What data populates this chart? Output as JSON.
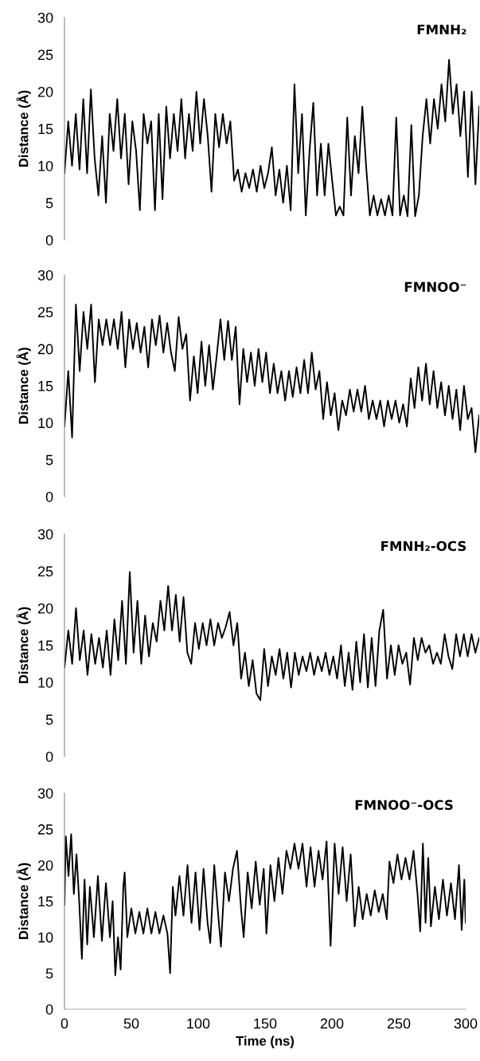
{
  "chart_data": [
    {
      "type": "line",
      "title": "FMNH₂",
      "ylabel": "Distance (Å)",
      "ylim": [
        0,
        30
      ],
      "yticks": [
        0,
        5,
        10,
        15,
        20,
        25,
        30
      ],
      "tick_labels": "y",
      "line_style": "solid",
      "categories": [
        null,
        null,
        null,
        null,
        null,
        null,
        null,
        null,
        null,
        null,
        null,
        null,
        null,
        null,
        null,
        null,
        null,
        null,
        null,
        null,
        null,
        null,
        null,
        null,
        null,
        null,
        null,
        null,
        null,
        null,
        null,
        null,
        null,
        null,
        null,
        null,
        null,
        null,
        null,
        null,
        null,
        null,
        null,
        null,
        null,
        null,
        null,
        null,
        null,
        null,
        null,
        null,
        null,
        null,
        null,
        null,
        null,
        null,
        null,
        null,
        null,
        null,
        null,
        null,
        null,
        null,
        null,
        null,
        null,
        null,
        null,
        null,
        null,
        null,
        null,
        null,
        null,
        null,
        null,
        null,
        null,
        null,
        null,
        null,
        null,
        null,
        null,
        null,
        null,
        null,
        null,
        null,
        null,
        null,
        null,
        null,
        null,
        null,
        null,
        null,
        null,
        null,
        null,
        null,
        null,
        null,
        null,
        null,
        null,
        null,
        null
      ],
      "series": [
        {
          "color": "#000000",
          "values": [
            9,
            16,
            10,
            17,
            9.5,
            19,
            9,
            20.3,
            11,
            6,
            14,
            5,
            17,
            12,
            19,
            11,
            17,
            7.5,
            16,
            12,
            4,
            17,
            13,
            16,
            4,
            17,
            5.5,
            18,
            11,
            17,
            12,
            19,
            11,
            17,
            12,
            20,
            13,
            19,
            14,
            6.5,
            17,
            12.5,
            17,
            13,
            16,
            8,
            9.5,
            6.5,
            9,
            7,
            9.5,
            6.5,
            10,
            7,
            9,
            12.5,
            6,
            9.5,
            5,
            10,
            4,
            21,
            9,
            17,
            3.3,
            12,
            18.5,
            6,
            13,
            6,
            13,
            8,
            3.3,
            4.5,
            3.3,
            16.5,
            6,
            14,
            9,
            18,
            10,
            3.3,
            6,
            3.3,
            5.5,
            3.3,
            6,
            3.3,
            16.5,
            3.3,
            6,
            3.2,
            15.5,
            3.2,
            6,
            14,
            19,
            13,
            19,
            15,
            21,
            16,
            24.3,
            17,
            21,
            14,
            20,
            8.5,
            20,
            7.5,
            18
          ]
        }
      ]
    },
    {
      "type": "line",
      "title": "FMNOO⁻",
      "ylabel": "Distance (Å)",
      "ylim": [
        0,
        30
      ],
      "yticks": [
        0,
        5,
        10,
        15,
        20,
        25,
        30
      ],
      "tick_labels": "y",
      "line_style": "solid",
      "categories": [
        null,
        null,
        null,
        null,
        null,
        null,
        null,
        null,
        null,
        null,
        null,
        null,
        null,
        null,
        null,
        null,
        null,
        null,
        null,
        null,
        null,
        null,
        null,
        null,
        null,
        null,
        null,
        null,
        null,
        null,
        null,
        null,
        null,
        null,
        null,
        null,
        null,
        null,
        null,
        null,
        null,
        null,
        null,
        null,
        null,
        null,
        null,
        null,
        null,
        null,
        null,
        null,
        null,
        null,
        null,
        null,
        null,
        null,
        null,
        null,
        null,
        null,
        null,
        null,
        null,
        null,
        null,
        null,
        null,
        null,
        null,
        null,
        null,
        null,
        null,
        null,
        null,
        null,
        null,
        null,
        null,
        null,
        null,
        null,
        null,
        null,
        null,
        null,
        null,
        null,
        null,
        null,
        null,
        null,
        null,
        null,
        null,
        null,
        null,
        null,
        null,
        null,
        null,
        null,
        null,
        null,
        null,
        null,
        null,
        null
      ],
      "series": [
        {
          "color": "#000000",
          "values": [
            9.5,
            17,
            8,
            26,
            17,
            25,
            20,
            26,
            15.5,
            24,
            20.5,
            24,
            20.5,
            24,
            20,
            25,
            17.5,
            24,
            20,
            23.5,
            19.5,
            23,
            17.5,
            24,
            20.5,
            24.5,
            19.5,
            23.5,
            19.5,
            17,
            24.3,
            20,
            22,
            13,
            19,
            14,
            21,
            15,
            20.5,
            14.5,
            19,
            24,
            18.5,
            23.8,
            18.5,
            23,
            12.5,
            20,
            15.5,
            19.5,
            15,
            20,
            15.5,
            19.5,
            14,
            18,
            14,
            17,
            13,
            17,
            13.5,
            17.5,
            14,
            18.5,
            14,
            19.5,
            14.5,
            17,
            10.5,
            15.5,
            11,
            14,
            9,
            13,
            11,
            14.5,
            11.5,
            14.5,
            11.5,
            15,
            10.5,
            13,
            10.5,
            13,
            9.5,
            13,
            10.5,
            13,
            10,
            12.5,
            9.5,
            16,
            12,
            17.5,
            13,
            18,
            12.5,
            17,
            12,
            15.5,
            11,
            15,
            10.5,
            14.5,
            9,
            15,
            10.5,
            12,
            6,
            11
          ]
        }
      ]
    },
    {
      "type": "line",
      "title": "FMNH₂-OCS",
      "ylabel": "Distance (Å)",
      "ylim": [
        0,
        30
      ],
      "yticks": [
        0,
        5,
        10,
        15,
        20,
        25,
        30
      ],
      "tick_labels": "y",
      "line_style": "solid",
      "categories": [
        null,
        null,
        null,
        null,
        null,
        null,
        null,
        null,
        null,
        null,
        null,
        null,
        null,
        null,
        null,
        null,
        null,
        null,
        null,
        null,
        null,
        null,
        null,
        null,
        null,
        null,
        null,
        null,
        null,
        null,
        null,
        null,
        null,
        null,
        null,
        null,
        null,
        null,
        null,
        null,
        null,
        null,
        null,
        null,
        null,
        null,
        null,
        null,
        null,
        null,
        null,
        null,
        null,
        null,
        null,
        null,
        null,
        null,
        null,
        null,
        null,
        null,
        null,
        null,
        null,
        null,
        null,
        null,
        null,
        null,
        null,
        null,
        null,
        null,
        null,
        null,
        null,
        null,
        null,
        null,
        null,
        null,
        null,
        null,
        null,
        null,
        null,
        null,
        null,
        null,
        null,
        null,
        null,
        null,
        null,
        null,
        null,
        null,
        null,
        null,
        null,
        null,
        null,
        null,
        null,
        null,
        null,
        null,
        null
      ],
      "series": [
        {
          "color": "#000000",
          "values": [
            12,
            17,
            12.5,
            20,
            13,
            17,
            11,
            16.5,
            12.5,
            16,
            12,
            17,
            11,
            18.5,
            13,
            21,
            12.5,
            24.9,
            14,
            21,
            12.5,
            19,
            13.5,
            18,
            15.5,
            21,
            17,
            23,
            17,
            21.8,
            15.5,
            21.5,
            14,
            12.5,
            18,
            14.5,
            18,
            15,
            18.5,
            15,
            18,
            16,
            17.5,
            19.5,
            15,
            18,
            10.5,
            14,
            9.5,
            13,
            8.5,
            7.6,
            14.5,
            9.5,
            13.5,
            11,
            14.5,
            10.5,
            14,
            9.3,
            14,
            11,
            13.5,
            11.5,
            14,
            11,
            13.5,
            11.5,
            14,
            11,
            13.5,
            10.5,
            15,
            9.5,
            14,
            9,
            15.5,
            10,
            16.5,
            9.3,
            16,
            9.5,
            17,
            19.8,
            10.5,
            15,
            11,
            15,
            12.5,
            14,
            9.7,
            16,
            13,
            16,
            14,
            15,
            12.5,
            14,
            12.5,
            16.5,
            13.5,
            11.8,
            16.5,
            13.5,
            16.5,
            13.5,
            16.5,
            14,
            16
          ]
        }
      ]
    },
    {
      "type": "line",
      "title": "FMNOO⁻-OCS",
      "ylabel": "Distance (Å)",
      "xlabel": "Time (ns)",
      "xlim": [
        0,
        300
      ],
      "xticks": [
        0,
        50,
        100,
        150,
        200,
        250,
        300
      ],
      "ylim": [
        0,
        30
      ],
      "yticks": [
        0,
        5,
        10,
        15,
        20,
        25,
        30
      ],
      "line_style": "solid",
      "x": [
        0,
        1,
        3,
        5,
        7,
        9,
        11,
        13,
        15,
        17,
        19,
        22,
        25,
        28,
        31,
        34,
        36,
        38,
        40,
        42,
        44,
        45,
        47,
        50,
        53,
        56,
        59,
        62,
        65,
        68,
        71,
        74,
        77,
        79,
        81,
        83,
        86,
        89,
        92,
        95,
        98,
        101,
        104,
        107,
        109,
        112,
        115,
        117,
        120,
        123,
        126,
        129,
        132,
        134,
        137,
        140,
        143,
        146,
        149,
        151,
        154,
        157,
        160,
        163,
        166,
        169,
        172,
        175,
        178,
        181,
        184,
        187,
        190,
        193,
        196,
        199,
        202,
        205,
        208,
        211,
        214,
        217,
        220,
        223,
        226,
        229,
        232,
        235,
        238,
        241,
        243,
        246,
        249,
        252,
        255,
        258,
        261,
        264,
        266,
        268,
        270,
        272,
        274,
        277,
        280,
        283,
        286,
        289,
        292,
        295,
        297,
        299,
        300
      ],
      "series": [
        {
          "color": "#000000",
          "values": [
            14.5,
            24,
            18.5,
            24.3,
            16,
            21.5,
            15,
            7,
            18,
            9,
            17,
            10,
            18.5,
            9.5,
            17.5,
            10,
            15,
            4.7,
            10,
            5.5,
            17,
            19,
            10,
            14,
            10.5,
            13.5,
            10.5,
            14,
            10.5,
            13.5,
            10.5,
            13,
            10.5,
            5,
            17,
            13,
            18.5,
            13,
            20,
            12,
            19,
            11,
            19.5,
            12,
            9.2,
            20,
            13,
            8.7,
            19,
            15,
            19.5,
            22,
            14,
            10,
            19,
            14,
            20.5,
            14.5,
            19.5,
            10.5,
            20,
            15,
            21,
            16,
            22,
            19.5,
            23,
            19.5,
            23,
            17,
            22.5,
            17,
            22,
            18,
            23.3,
            8.8,
            23,
            16,
            22.5,
            15,
            21.5,
            11.5,
            17,
            12.5,
            16,
            13,
            16.5,
            13.5,
            16,
            12.5,
            20.5,
            17.5,
            21.5,
            18,
            21,
            18,
            22,
            16,
            10.8,
            23,
            12,
            21,
            11.5,
            17,
            12.5,
            18,
            13,
            17.5,
            12.5,
            20,
            11,
            18,
            12
          ]
        }
      ]
    }
  ]
}
